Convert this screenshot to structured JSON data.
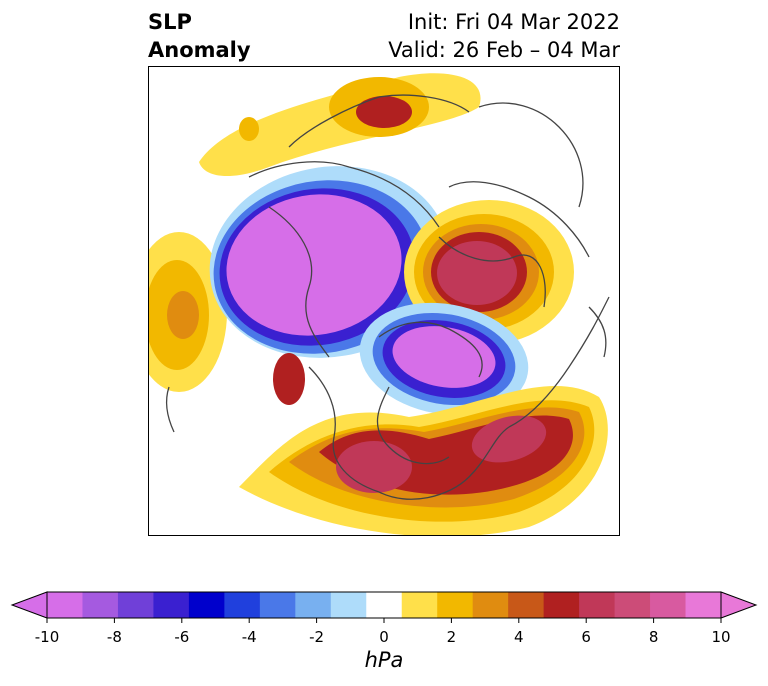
{
  "title": {
    "line1": "SLP",
    "line2": "Anomaly"
  },
  "init": "Init: Fri 04 Mar 2022",
  "valid": "Valid: 26 Feb – 04 Mar",
  "colorbar": {
    "unit": "hPa",
    "ticks": [
      "-10",
      "-8",
      "-6",
      "-4",
      "-2",
      "0",
      "2",
      "4",
      "6",
      "8",
      "10"
    ],
    "tick_values": [
      -10,
      -8,
      -6,
      -4,
      -2,
      0,
      2,
      4,
      6,
      8,
      10
    ],
    "levels": [
      -10,
      -9,
      -8,
      -7,
      -6,
      -5,
      -4,
      -3,
      -2,
      -1,
      1,
      2,
      3,
      4,
      5,
      6,
      7,
      8,
      9,
      10
    ],
    "colors": [
      "#d66ee8",
      "#a55ae0",
      "#7040d8",
      "#3a20d0",
      "#0000cc",
      "#2040dd",
      "#4a78e8",
      "#78b0f0",
      "#aedcfa",
      "#ffffff",
      "#ffe04a",
      "#f2b800",
      "#e08c10",
      "#c85818",
      "#b02020",
      "#c03858",
      "#cc4c78",
      "#d85aa0",
      "#e878d8"
    ],
    "extend_min_color": "#d66ee8",
    "extend_max_color": "#e878d8"
  },
  "map_colors": {
    "neg_strong": "#d66ee8",
    "neg_edge1": "#3a20d0",
    "neg_edge2": "#4a78e8",
    "neg_edge3": "#aedcfa",
    "pos_weak": "#ffe04a",
    "pos_mid": "#f2b800",
    "pos_orange": "#e08c10",
    "pos_red": "#b02020",
    "pos_crimson": "#c03858",
    "coast": "#444444"
  }
}
